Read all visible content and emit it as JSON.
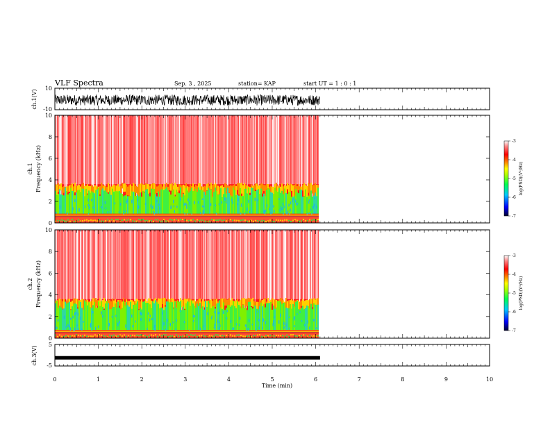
{
  "header": {
    "title": "VLF Spectra",
    "date": "Sep. 3  , 2025",
    "station": "station= KAP",
    "start": "start  UT =   1 : 0  : 1"
  },
  "chart_data": [
    {
      "type": "line",
      "name": "ch1-waveform",
      "ylabel": "ch.1(V)",
      "ylim": [
        -10,
        10
      ],
      "yticks": [
        "10",
        "-10"
      ],
      "x_range_min": [
        0,
        10
      ],
      "data_end_min": 6.1,
      "envelope_V": [
        -6,
        4
      ]
    },
    {
      "type": "heatmap",
      "name": "ch1-spectrogram",
      "ylabel": "ch.1\nFrequency  (kHz)",
      "ylim_kHz": [
        0,
        10
      ],
      "yticks": [
        "0",
        "2",
        "4",
        "6",
        "8",
        "10"
      ],
      "data_end_min": 6.1,
      "colorbar": {
        "label": "log(PSD)(V²/Hz)",
        "range": [
          -7,
          -3
        ],
        "ticks": [
          "-3",
          "-4",
          "-5",
          "-6",
          "-7"
        ]
      },
      "bands_kHz": {
        "red_above": 3.6,
        "green_to": 2.4,
        "dark_line": 0.6
      }
    },
    {
      "type": "heatmap",
      "name": "ch2-spectrogram",
      "ylabel": "ch.2\nFrequency  (kHz)",
      "ylim_kHz": [
        0,
        10
      ],
      "yticks": [
        "0",
        "2",
        "4",
        "6",
        "8",
        "10"
      ],
      "data_end_min": 6.1,
      "colorbar": {
        "label": "log(PSD)(V²/Hz)",
        "range": [
          -7,
          -3
        ],
        "ticks": [
          "-3",
          "-4",
          "-5",
          "-6",
          "-7"
        ]
      },
      "bands_kHz": {
        "red_above": 3.6,
        "green_to": 2.6,
        "dark_line": 0.5
      }
    },
    {
      "type": "line",
      "name": "ch3-waveform",
      "ylabel": "ch.3(V)",
      "ylim": [
        -5,
        5
      ],
      "yticks": [
        "5",
        "0",
        "-5"
      ],
      "data_end_min": 6.1,
      "level_V": -1.2
    }
  ],
  "xaxis": {
    "label": "Time  (min)",
    "range": [
      0,
      10
    ],
    "ticks": [
      "0",
      "1",
      "2",
      "3",
      "4",
      "5",
      "6",
      "7",
      "8",
      "9",
      "10"
    ]
  },
  "colors": {
    "axis": "#000000",
    "waveform": "#000000",
    "colormap": [
      "#000040",
      "#0000ff",
      "#00c0ff",
      "#00ff60",
      "#80ff00",
      "#ffff00",
      "#ff8000",
      "#ff0000",
      "#ff8080",
      "#ffffff"
    ]
  }
}
